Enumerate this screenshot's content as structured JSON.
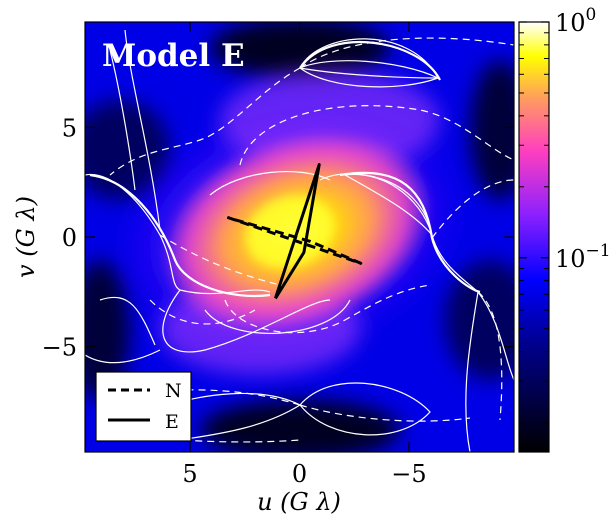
{
  "chart_data": {
    "type": "heatmap",
    "title": "Model E",
    "xlabel": "u (G λ)",
    "ylabel": "v (G λ)",
    "xlim": [
      9.8,
      -9.8
    ],
    "ylim": [
      -9.8,
      9.8
    ],
    "x_ticks": [
      5,
      0,
      -5
    ],
    "x_tick_labels": [
      "5",
      "0",
      "−5"
    ],
    "y_ticks": [
      5,
      0,
      -5
    ],
    "y_tick_labels": [
      "5",
      "0",
      "−5"
    ],
    "colorbar": {
      "scale": "log",
      "range": [
        0.015,
        1.0
      ],
      "colormap": "gnuplot2",
      "ticks": [
        {
          "value": 1.0,
          "base": "10",
          "exp": "0"
        },
        {
          "value": 0.1,
          "base": "10",
          "exp": "−1"
        }
      ]
    },
    "colormap_stops": [
      {
        "t": 0.0,
        "color": "#000000"
      },
      {
        "t": 0.25,
        "color": "#00008c"
      },
      {
        "t": 0.4,
        "color": "#0000ff"
      },
      {
        "t": 0.55,
        "color": "#8a20ff"
      },
      {
        "t": 0.7,
        "color": "#ff3fbf"
      },
      {
        "t": 0.82,
        "color": "#ff9a60"
      },
      {
        "t": 0.92,
        "color": "#ffff00"
      },
      {
        "t": 1.0,
        "color": "#ffffff"
      }
    ],
    "contours": {
      "color": "#ffffff",
      "solid_label": "positive",
      "dashed_label": "negative"
    },
    "baselines": [
      {
        "name": "N",
        "style": "dashed",
        "color": "#000000",
        "points": [
          [
            3.3,
            0.9
          ],
          [
            -2.8,
            -1.2
          ],
          [
            -0.5,
            -0.2
          ],
          [
            3.0,
            0.8
          ]
        ]
      },
      {
        "name": "E",
        "style": "solid",
        "color": "#000000",
        "points": [
          [
            1.1,
            -2.8
          ],
          [
            -0.9,
            3.3
          ],
          [
            -0.2,
            -0.7
          ],
          [
            1.1,
            -2.8
          ]
        ]
      }
    ],
    "legend": {
      "placement": "bottom-left",
      "entries": [
        {
          "label": "N",
          "style": "dashed"
        },
        {
          "label": "E",
          "style": "solid"
        }
      ]
    }
  }
}
